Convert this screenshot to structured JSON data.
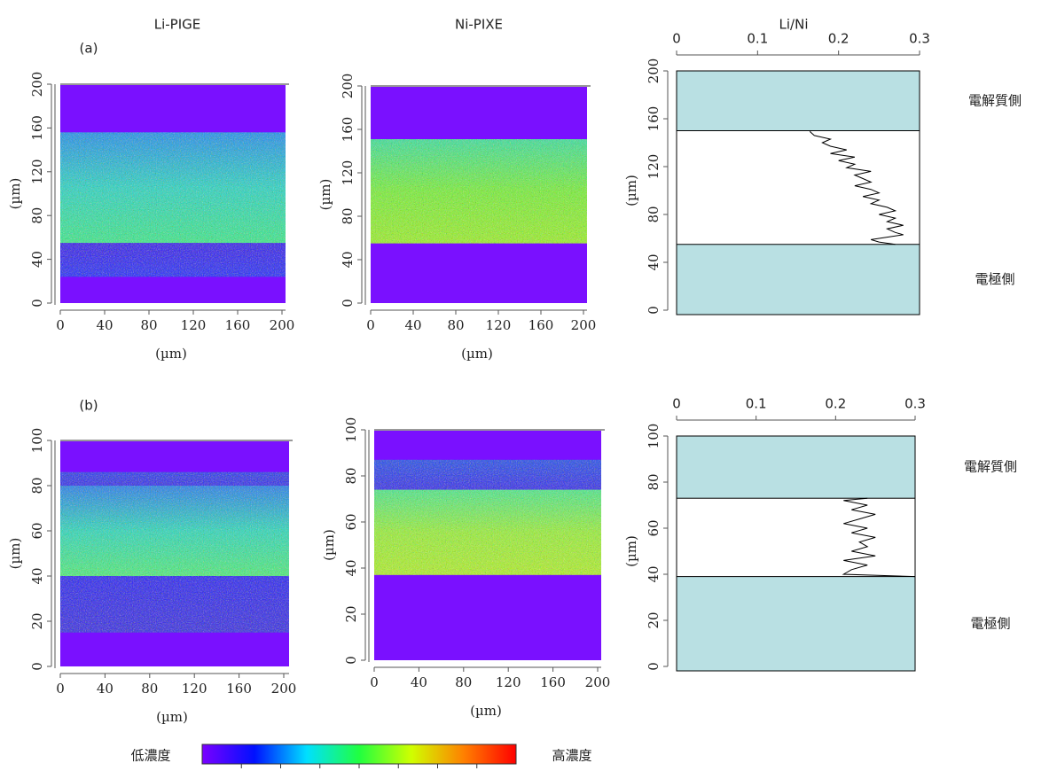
{
  "chart_data": [
    {
      "type": "heatmap",
      "title": "Li-PIGE",
      "label": "(a)",
      "xlabel": "(µm)",
      "ylabel": "(µm)",
      "xlim": [
        0,
        200
      ],
      "ylim": [
        0,
        200
      ],
      "xticks": [
        0,
        40,
        80,
        120,
        160,
        200
      ],
      "yticks": [
        0,
        40,
        80,
        120,
        160,
        200
      ]
    },
    {
      "type": "heatmap",
      "title": "Ni-PIXE",
      "xlabel": "(µm)",
      "ylabel": "(µm)",
      "xlim": [
        0,
        200
      ],
      "ylim": [
        0,
        200
      ],
      "xticks": [
        0,
        40,
        80,
        120,
        160,
        200
      ],
      "yticks": [
        0,
        40,
        80,
        120,
        160,
        200
      ]
    },
    {
      "type": "line",
      "title": "Li/Ni",
      "ylabel": "(µm)",
      "xlim": [
        0,
        0.3
      ],
      "ylim": [
        0,
        200
      ],
      "xticks": [
        0,
        0.1,
        0.2,
        0.3
      ],
      "yticks": [
        0,
        40,
        80,
        120,
        160,
        200
      ],
      "color": "#000000",
      "region_color": "#b9e0e3",
      "regions": [
        {
          "label": "電解質側",
          "range": [
            150,
            200
          ]
        },
        {
          "label": "電極側",
          "range": [
            0,
            55
          ]
        }
      ],
      "y": [
        55,
        57,
        59,
        61,
        63,
        65,
        68,
        71,
        74,
        77,
        80,
        83,
        86,
        89,
        92,
        95,
        98,
        101,
        104,
        107,
        110,
        113,
        116,
        119,
        122,
        125,
        128,
        131,
        134,
        137,
        140,
        143,
        146,
        149,
        150
      ],
      "values": [
        0.27,
        0.25,
        0.24,
        0.26,
        0.28,
        0.27,
        0.26,
        0.28,
        0.26,
        0.27,
        0.25,
        0.27,
        0.26,
        0.24,
        0.25,
        0.23,
        0.25,
        0.24,
        0.22,
        0.24,
        0.23,
        0.22,
        0.24,
        0.21,
        0.22,
        0.2,
        0.22,
        0.19,
        0.21,
        0.19,
        0.18,
        0.19,
        0.17,
        0.165,
        0.165
      ]
    },
    {
      "type": "heatmap",
      "label": "(b)",
      "xlabel": "(µm)",
      "ylabel": "(µm)",
      "xlim": [
        0,
        200
      ],
      "ylim": [
        0,
        100
      ],
      "xticks": [
        0,
        40,
        80,
        120,
        160,
        200
      ],
      "yticks": [
        0,
        20,
        40,
        60,
        80,
        100
      ]
    },
    {
      "type": "heatmap",
      "xlabel": "(µm)",
      "ylabel": "(µm)",
      "xlim": [
        0,
        200
      ],
      "ylim": [
        0,
        100
      ],
      "xticks": [
        0,
        40,
        80,
        120,
        160,
        200
      ],
      "yticks": [
        0,
        20,
        40,
        60,
        80,
        100
      ]
    },
    {
      "type": "line",
      "ylabel": "(µm)",
      "xlim": [
        0,
        0.3
      ],
      "ylim": [
        0,
        100
      ],
      "xticks": [
        0,
        0.1,
        0.2,
        0.3
      ],
      "yticks": [
        0,
        20,
        40,
        60,
        80,
        100
      ],
      "color": "#000000",
      "region_color": "#b9e0e3",
      "regions": [
        {
          "label": "電解質側",
          "range": [
            73,
            100
          ]
        },
        {
          "label": "電極側",
          "range": [
            0,
            39
          ]
        }
      ],
      "y": [
        39,
        40,
        42,
        44,
        46,
        48,
        50,
        52,
        54,
        56,
        58,
        60,
        62,
        64,
        66,
        68,
        70,
        72,
        73
      ],
      "values": [
        0.3,
        0.21,
        0.22,
        0.24,
        0.21,
        0.25,
        0.22,
        0.24,
        0.23,
        0.25,
        0.22,
        0.24,
        0.21,
        0.23,
        0.25,
        0.22,
        0.24,
        0.21,
        0.24
      ]
    }
  ],
  "colorbar": {
    "low": "低濃度",
    "high": "高濃度",
    "colors": [
      "#7a00ff",
      "#0010ff",
      "#00e0ff",
      "#20ff40",
      "#d0ff00",
      "#ff8000",
      "#ff0000"
    ]
  }
}
